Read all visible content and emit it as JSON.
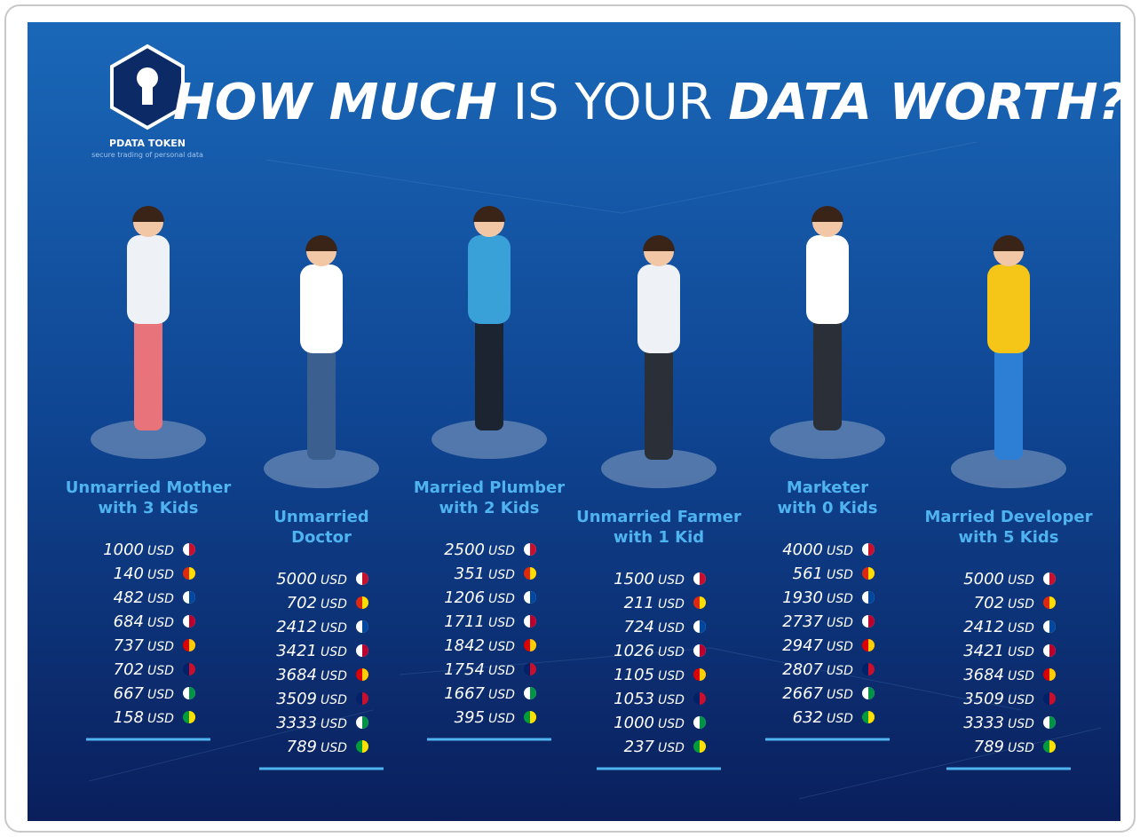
{
  "logo": {
    "name": "PDATA TOKEN",
    "tagline": "secure trading of personal data"
  },
  "title": {
    "part1": "HOW MUCH",
    "part2": "IS YOUR",
    "part3": "DATA WORTH?"
  },
  "currency": "USD",
  "columns": [
    {
      "label": [
        "Unmarried Mother",
        "with 3 Kids"
      ],
      "values": [
        1000,
        140,
        482,
        684,
        737,
        702,
        667,
        158
      ]
    },
    {
      "label": [
        "Unmarried",
        "Doctor"
      ],
      "values": [
        5000,
        702,
        2412,
        3421,
        3684,
        3509,
        3333,
        789
      ]
    },
    {
      "label": [
        "Married Plumber",
        "with 2 Kids"
      ],
      "values": [
        2500,
        351,
        1206,
        1711,
        1842,
        1754,
        1667,
        395
      ]
    },
    {
      "label": [
        "Unmarried Farmer",
        "with 1 Kid"
      ],
      "values": [
        1500,
        211,
        724,
        1026,
        1105,
        1053,
        1000,
        237
      ]
    },
    {
      "label": [
        "Marketer",
        "with 0 Kids"
      ],
      "values": [
        4000,
        561,
        1930,
        2737,
        2947,
        2807,
        2667,
        632
      ]
    },
    {
      "label": [
        "Married Developer",
        "with 5 Kids"
      ],
      "values": [
        5000,
        702,
        2412,
        3421,
        3684,
        3509,
        3333,
        789
      ]
    }
  ]
}
